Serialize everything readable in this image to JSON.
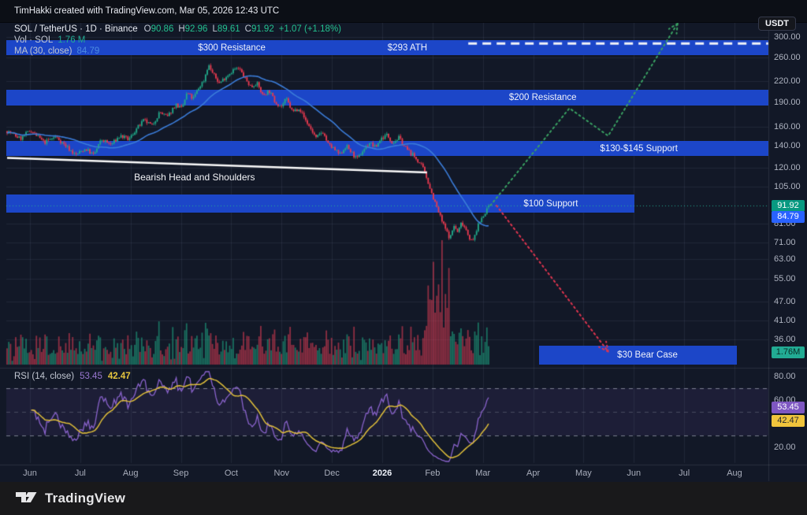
{
  "attribution": "TimHakki created with TradingView.com, Mar 05, 2026 12:43 UTC",
  "currency_button": "USDT",
  "footer_brand": "TradingView",
  "legend": {
    "symbol": "SOL / TetherUS · 1D · Binance",
    "ohlc": [
      {
        "k": "O",
        "v": "90.86"
      },
      {
        "k": "H",
        "v": "92.96"
      },
      {
        "k": "L",
        "v": "89.61"
      },
      {
        "k": "C",
        "v": "91.92"
      }
    ],
    "change": "+1.07 (+1.18%)",
    "vol_label": "Vol · SOL",
    "vol_value": "1.76 M",
    "ma_label": "MA (30, close)",
    "ma_value": "84.79"
  },
  "rsi_legend": {
    "label": "RSI (14, close)",
    "value1": "53.45",
    "value2": "42.47"
  },
  "badges": {
    "last_price": {
      "text": "91.92",
      "bg": "#089981",
      "fg": "#ffffff"
    },
    "ma": {
      "text": "84.79",
      "bg": "#2962ff",
      "fg": "#ffffff"
    },
    "volume": {
      "text": "1.76M",
      "bg": "#22ab94",
      "fg": "#082e27"
    },
    "rsi": {
      "text": "53.45",
      "bg": "#7e57c2",
      "fg": "#ffffff"
    },
    "rsi_ma": {
      "text": "42.47",
      "bg": "#f0c43c",
      "fg": "#27292e"
    }
  },
  "colors": {
    "up": "#21a889",
    "down": "#e83a4f",
    "ma_line": "#3b7cd8",
    "band_blue": "#1c46c8",
    "bull_proj": "#3aa263",
    "bear_proj": "#e0354f",
    "rsi_line": "#8a63cc",
    "rsi_ma_line": "#e0bf3a",
    "price_line": "#22ab94",
    "trendline": "#fafafa",
    "ath_dash": "#f2f4f8"
  },
  "chart_data": {
    "type": "candlestick",
    "symbol": "SOL/USDT",
    "exchange": "Binance",
    "interval": "1D",
    "scale": "log",
    "last": {
      "open": 90.86,
      "high": 92.96,
      "low": 89.61,
      "close": 91.92,
      "change": 1.07,
      "change_pct": 1.18
    },
    "volume_last_m": 1.76,
    "ma30": 84.79,
    "rsi14": 53.45,
    "rsi14_ma": 42.47,
    "y_axis_ticks": [
      "300.00",
      "260.00",
      "220.00",
      "190.00",
      "160.00",
      "140.00",
      "120.00",
      "105.00",
      "81.00",
      "71.00",
      "63.00",
      "55.00",
      "47.00",
      "41.00",
      "36.00"
    ],
    "rsi_axis_ticks": [
      "80.00",
      "60.00",
      "20.00"
    ],
    "rsi_levels": [
      70,
      50,
      30
    ],
    "x_axis_ticks": [
      "Jun",
      "Jul",
      "Aug",
      "Sep",
      "Oct",
      "Nov",
      "Dec",
      "2026",
      "Feb",
      "Mar",
      "Apr",
      "May",
      "Jun",
      "Jul",
      "Aug"
    ],
    "x_axis_bold_tick": "2026",
    "price_path": [
      [
        0,
        155
      ],
      [
        0.028,
        147
      ],
      [
        0.049,
        156
      ],
      [
        0.077,
        143
      ],
      [
        0.101,
        149
      ],
      [
        0.126,
        138
      ],
      [
        0.142,
        131
      ],
      [
        0.163,
        137
      ],
      [
        0.18,
        131
      ],
      [
        0.196,
        146
      ],
      [
        0.216,
        141
      ],
      [
        0.235,
        150
      ],
      [
        0.253,
        146
      ],
      [
        0.268,
        157
      ],
      [
        0.284,
        167
      ],
      [
        0.301,
        161
      ],
      [
        0.317,
        177
      ],
      [
        0.333,
        171
      ],
      [
        0.35,
        187
      ],
      [
        0.363,
        181
      ],
      [
        0.374,
        203
      ],
      [
        0.386,
        194
      ],
      [
        0.399,
        211
      ],
      [
        0.409,
        222
      ],
      [
        0.418,
        247
      ],
      [
        0.428,
        231
      ],
      [
        0.441,
        217
      ],
      [
        0.454,
        227
      ],
      [
        0.471,
        239
      ],
      [
        0.482,
        240
      ],
      [
        0.495,
        223
      ],
      [
        0.507,
        211
      ],
      [
        0.518,
        218
      ],
      [
        0.531,
        199
      ],
      [
        0.544,
        206
      ],
      [
        0.556,
        191
      ],
      [
        0.569,
        184
      ],
      [
        0.58,
        194
      ],
      [
        0.593,
        177
      ],
      [
        0.606,
        183
      ],
      [
        0.618,
        169
      ],
      [
        0.629,
        159
      ],
      [
        0.642,
        147
      ],
      [
        0.655,
        155
      ],
      [
        0.667,
        141
      ],
      [
        0.678,
        137
      ],
      [
        0.691,
        131
      ],
      [
        0.704,
        140
      ],
      [
        0.716,
        133
      ],
      [
        0.727,
        127
      ],
      [
        0.74,
        136
      ],
      [
        0.753,
        143
      ],
      [
        0.765,
        138
      ],
      [
        0.776,
        147
      ],
      [
        0.789,
        151
      ],
      [
        0.801,
        143
      ],
      [
        0.814,
        148
      ],
      [
        0.825,
        139
      ],
      [
        0.838,
        133
      ],
      [
        0.851,
        127
      ],
      [
        0.863,
        120
      ],
      [
        0.873,
        110
      ],
      [
        0.882,
        100
      ],
      [
        0.892,
        91
      ],
      [
        0.902,
        83
      ],
      [
        0.912,
        77
      ],
      [
        0.92,
        73
      ],
      [
        0.928,
        80
      ],
      [
        0.936,
        76
      ],
      [
        0.944,
        82
      ],
      [
        0.953,
        78
      ],
      [
        0.961,
        73
      ],
      [
        0.967,
        71
      ],
      [
        0.974,
        77
      ],
      [
        0.98,
        81
      ],
      [
        0.987,
        85
      ],
      [
        0.993,
        88
      ],
      [
        1,
        91.9
      ]
    ],
    "levels": [
      {
        "name": "r300",
        "label": "$300 Resistance",
        "price_range": [
          264,
          293
        ],
        "label_x_idx": 4.01,
        "label_price": 278
      },
      {
        "name": "ath",
        "label": "$293 ATH",
        "price": 293,
        "style": "dashed-line",
        "x_range": [
          8.71,
          14.67
        ],
        "label_x_idx": 7.5,
        "label_price": 278
      },
      {
        "name": "r200",
        "label": "$200 Resistance",
        "price_range": [
          186,
          207
        ],
        "label_x_idx": 10.19,
        "label_price": 196
      },
      {
        "name": "s130",
        "label": "$130-$145 Support",
        "price_range": [
          130,
          145
        ],
        "label_x_idx": 12.1,
        "label_price": 137
      },
      {
        "name": "s100",
        "label": "$100 Support",
        "price_range": [
          87.5,
          99.5
        ],
        "x_range": [
          -0.47,
          12.01
        ],
        "label_x_idx": 10.35,
        "label_price": 93
      },
      {
        "name": "bear30",
        "label": "$30 Bear Case",
        "price_range": [
          30.2,
          34.4
        ],
        "x_range": [
          10.12,
          14.05
        ],
        "label_x_idx": 12.27,
        "label_price": 32.2
      }
    ],
    "trendline": {
      "label": "Bearish Head and Shoulders",
      "f0": 0,
      "p0": 128.5,
      "f1": 0.872,
      "p1": 116,
      "label_x_idx": 3.27,
      "label_price": 112
    },
    "projections": {
      "bull": [
        [
          9.15,
          92
        ],
        [
          10.72,
          182
        ],
        [
          11.49,
          150
        ],
        [
          12.87,
          330
        ]
      ],
      "bear": [
        [
          9.27,
          92
        ],
        [
          11.49,
          33
        ]
      ]
    }
  }
}
